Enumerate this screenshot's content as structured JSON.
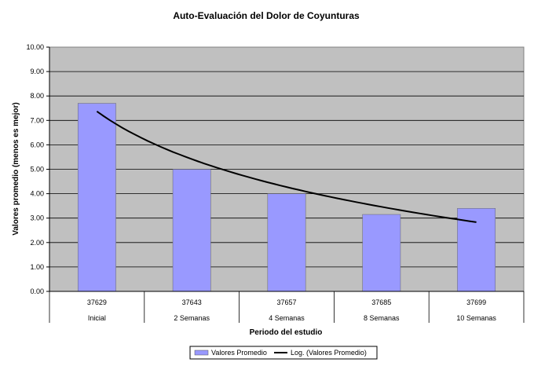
{
  "chart_data": {
    "type": "bar",
    "title": "Auto-Evaluación del Dolor de Coyunturas",
    "xlabel": "Periodo del estudio",
    "ylabel": "Valores promedio (menos es mejor)",
    "ylim": [
      0,
      10
    ],
    "y_ticks": [
      "0.00",
      "1.00",
      "2.00",
      "3.00",
      "4.00",
      "5.00",
      "6.00",
      "7.00",
      "8.00",
      "9.00",
      "10.00"
    ],
    "grid": true,
    "legend_position": "bottom",
    "categories_top": [
      "37629",
      "37643",
      "37657",
      "37685",
      "37699"
    ],
    "categories": [
      "Inicial",
      "2 Semanas",
      "4 Semanas",
      "8 Semanas",
      "10 Semanas"
    ],
    "series": [
      {
        "name": "Valores Promedio",
        "type": "bar",
        "values": [
          7.7,
          5.0,
          4.0,
          3.15,
          3.4
        ],
        "color": "#9999ff"
      },
      {
        "name": "Log. (Valores Promedio)",
        "type": "line",
        "values": [
          7.35,
          5.45,
          4.25,
          3.5,
          2.8
        ],
        "color": "#000000"
      }
    ],
    "plot_background": "#c0c0c0"
  }
}
